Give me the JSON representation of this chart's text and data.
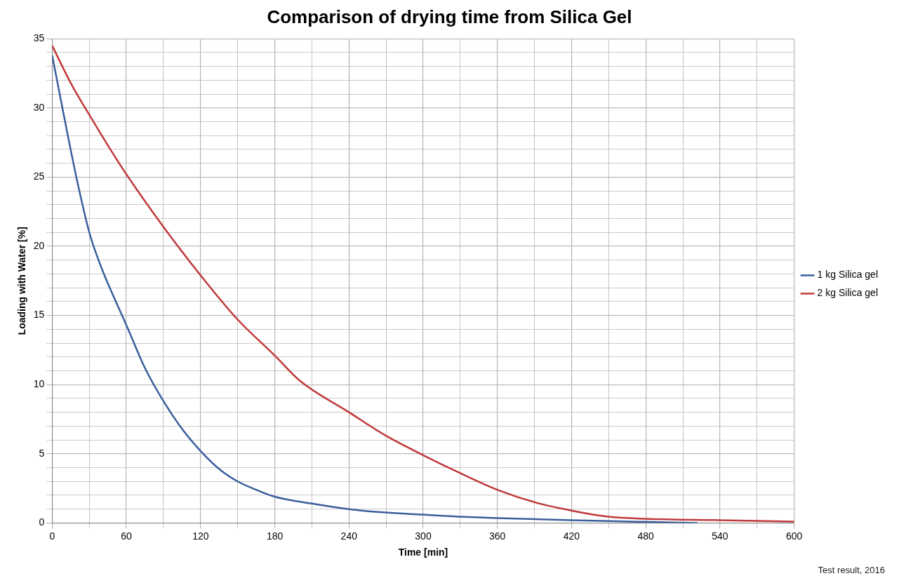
{
  "chart_data": {
    "type": "line",
    "title": "Comparison of drying time from Silica Gel",
    "xlabel": "Time [min]",
    "ylabel": "Loading with Water [%]",
    "xlim": [
      0,
      600
    ],
    "xticks": [
      0,
      {
        "value": 30,
        "label": null
      },
      60,
      {
        "value": 90,
        "label": null
      },
      120,
      {
        "value": 150,
        "label": null
      },
      180,
      {
        "value": 210,
        "label": null
      },
      240,
      {
        "value": 270,
        "label": null
      },
      300,
      {
        "value": 330,
        "label": null
      },
      360,
      {
        "value": 390,
        "label": null
      },
      420,
      {
        "value": 450,
        "label": null
      },
      480,
      {
        "value": 510,
        "label": null
      },
      540,
      {
        "value": 570,
        "label": null
      },
      600
    ],
    "ylim": [
      0,
      35
    ],
    "yticks": [
      0,
      {
        "value": 1,
        "label": null
      },
      {
        "value": 2,
        "label": null
      },
      {
        "value": 3,
        "label": null
      },
      {
        "value": 4,
        "label": null
      },
      5,
      {
        "value": 6,
        "label": null
      },
      {
        "value": 7,
        "label": null
      },
      {
        "value": 8,
        "label": null
      },
      {
        "value": 9,
        "label": null
      },
      10,
      {
        "value": 11,
        "label": null
      },
      {
        "value": 12,
        "label": null
      },
      {
        "value": 13,
        "label": null
      },
      {
        "value": 14,
        "label": null
      },
      15,
      {
        "value": 16,
        "label": null
      },
      {
        "value": 17,
        "label": null
      },
      {
        "value": 18,
        "label": null
      },
      {
        "value": 19,
        "label": null
      },
      20,
      {
        "value": 21,
        "label": null
      },
      {
        "value": 22,
        "label": null
      },
      {
        "value": 23,
        "label": null
      },
      {
        "value": 24,
        "label": null
      },
      25,
      {
        "value": 26,
        "label": null
      },
      {
        "value": 27,
        "label": null
      },
      {
        "value": 28,
        "label": null
      },
      {
        "value": 29,
        "label": null
      },
      30,
      {
        "value": 31,
        "label": null
      },
      {
        "value": 32,
        "label": null
      },
      {
        "value": 33,
        "label": null
      },
      {
        "value": 34,
        "label": null
      },
      35
    ],
    "grid": true,
    "legend": "right",
    "marker": "none",
    "line_style": "solid",
    "series": [
      {
        "name": "1 kg Silica gel",
        "color": "#3a5f9c",
        "x": [
          0,
          10,
          20,
          30,
          40,
          50,
          60,
          75,
          90,
          105,
          120,
          135,
          150,
          165,
          180,
          210,
          240,
          270,
          300,
          330,
          360,
          420,
          480,
          522
        ],
        "values": [
          33.8,
          29.2,
          24.8,
          21,
          18.4,
          16.3,
          14.3,
          11.2,
          8.8,
          6.8,
          5.2,
          3.9,
          3,
          2.4,
          1.9,
          1.4,
          1,
          0.75,
          0.6,
          0.45,
          0.35,
          0.2,
          0.08,
          0
        ]
      },
      {
        "name": "2 kg Silica gel",
        "color": "#c0393b",
        "x": [
          0,
          15,
          30,
          45,
          60,
          90,
          120,
          150,
          180,
          200,
          240,
          270,
          300,
          330,
          360,
          390,
          420,
          450,
          480,
          540,
          600
        ],
        "values": [
          34.5,
          31.8,
          29.5,
          27.3,
          25.2,
          21.4,
          17.9,
          14.7,
          12.1,
          10.3,
          8,
          6.3,
          4.9,
          3.6,
          2.4,
          1.5,
          0.9,
          0.45,
          0.3,
          0.2,
          0.1
        ]
      }
    ],
    "annotations": [
      "Test result, 2016"
    ]
  }
}
